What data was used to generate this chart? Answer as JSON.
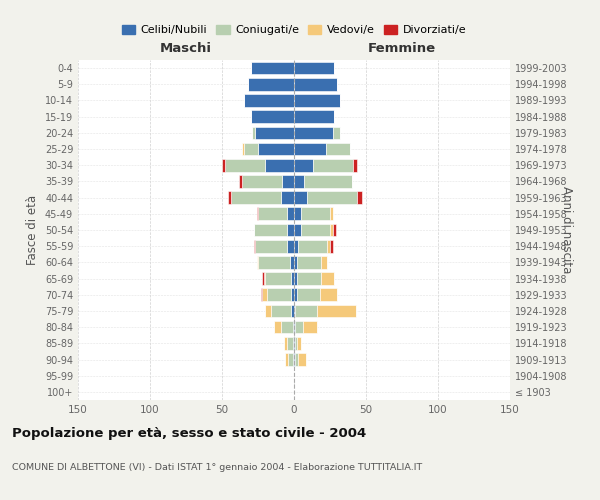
{
  "age_groups": [
    "100+",
    "95-99",
    "90-94",
    "85-89",
    "80-84",
    "75-79",
    "70-74",
    "65-69",
    "60-64",
    "55-59",
    "50-54",
    "45-49",
    "40-44",
    "35-39",
    "30-34",
    "25-29",
    "20-24",
    "15-19",
    "10-14",
    "5-9",
    "0-4"
  ],
  "birth_years": [
    "≤ 1903",
    "1904-1908",
    "1909-1913",
    "1914-1918",
    "1919-1923",
    "1924-1928",
    "1929-1933",
    "1934-1938",
    "1939-1943",
    "1944-1948",
    "1949-1953",
    "1954-1958",
    "1959-1963",
    "1964-1968",
    "1969-1973",
    "1974-1978",
    "1979-1983",
    "1984-1988",
    "1989-1993",
    "1994-1998",
    "1999-2003"
  ],
  "males": {
    "celibi": [
      0,
      0,
      1,
      1,
      1,
      2,
      2,
      2,
      3,
      5,
      5,
      5,
      9,
      8,
      20,
      25,
      27,
      30,
      35,
      32,
      30
    ],
    "coniugati": [
      0,
      0,
      3,
      4,
      8,
      14,
      17,
      18,
      22,
      22,
      23,
      20,
      35,
      28,
      28,
      10,
      2,
      0,
      0,
      0,
      0
    ],
    "vedovi": [
      0,
      0,
      2,
      2,
      5,
      4,
      3,
      1,
      1,
      0,
      0,
      0,
      0,
      0,
      0,
      1,
      0,
      0,
      0,
      0,
      0
    ],
    "divorziati": [
      0,
      0,
      0,
      0,
      0,
      0,
      1,
      1,
      0,
      1,
      0,
      1,
      2,
      2,
      2,
      0,
      0,
      0,
      0,
      0,
      0
    ]
  },
  "females": {
    "nubili": [
      0,
      0,
      1,
      1,
      1,
      1,
      2,
      2,
      2,
      3,
      5,
      5,
      9,
      7,
      13,
      22,
      27,
      28,
      32,
      30,
      28
    ],
    "coniugate": [
      0,
      0,
      2,
      1,
      5,
      15,
      16,
      17,
      17,
      20,
      20,
      20,
      35,
      33,
      28,
      17,
      5,
      0,
      0,
      0,
      0
    ],
    "vedove": [
      0,
      0,
      5,
      3,
      10,
      27,
      12,
      9,
      4,
      2,
      2,
      2,
      0,
      0,
      0,
      0,
      0,
      0,
      0,
      0,
      0
    ],
    "divorziate": [
      0,
      0,
      0,
      0,
      0,
      0,
      0,
      0,
      0,
      2,
      2,
      0,
      3,
      0,
      3,
      0,
      0,
      0,
      0,
      0,
      0
    ]
  },
  "colors": {
    "celibi": "#3a6fb0",
    "coniugati": "#b8cfb0",
    "vedovi": "#f5c97a",
    "divorziati": "#cc2222"
  },
  "xlim": 150,
  "title": "Popolazione per età, sesso e stato civile - 2004",
  "subtitle": "COMUNE DI ALBETTONE (VI) - Dati ISTAT 1° gennaio 2004 - Elaborazione TUTTITALIA.IT",
  "ylabel_left": "Fasce di età",
  "ylabel_right": "Anni di nascita",
  "xlabel_left": "Maschi",
  "xlabel_right": "Femmine",
  "legend_labels": [
    "Celibi/Nubili",
    "Coniugati/e",
    "Vedovi/e",
    "Divorziati/e"
  ],
  "bg_color": "#f2f2ec",
  "plot_bg": "#ffffff"
}
